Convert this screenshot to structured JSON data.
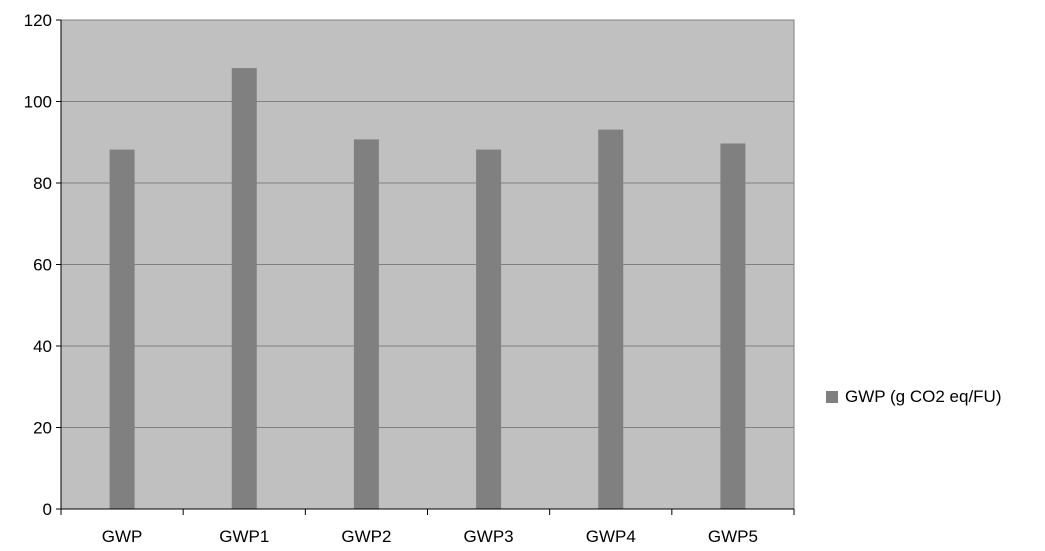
{
  "chart_data": {
    "type": "bar",
    "categories": [
      "GWP",
      "GWP1",
      "GWP2",
      "GWP3",
      "GWP4",
      "GWP5"
    ],
    "series": [
      {
        "name": "GWP (g CO2 eq/FU)",
        "values": [
          88.2,
          108.2,
          90.7,
          88.2,
          93.1,
          89.7
        ],
        "color": "#808080"
      }
    ],
    "ylim": [
      0,
      120
    ],
    "yticks": [
      0,
      20,
      40,
      60,
      80,
      100,
      120
    ],
    "grid": true,
    "legend_position": "right",
    "plot_background": "#c0c0c0",
    "gridline_color": "#808080",
    "title": "",
    "xlabel": "",
    "ylabel": ""
  }
}
